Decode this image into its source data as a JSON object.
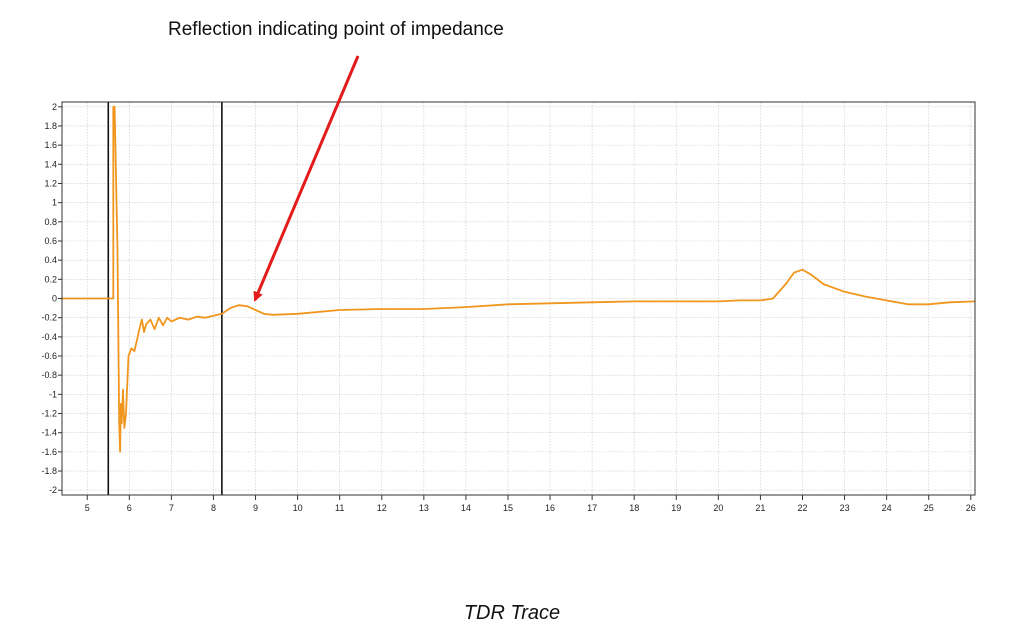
{
  "annotation": "Reflection indicating point of impedance",
  "caption": "TDR Trace",
  "chart_data": {
    "type": "line",
    "title": "",
    "xlabel": "",
    "ylabel": "",
    "xlim": [
      4.4,
      26.1
    ],
    "ylim": [
      -2.05,
      2.05
    ],
    "grid": true,
    "x_ticks": [
      5,
      6,
      7,
      8,
      9,
      10,
      11,
      12,
      13,
      14,
      15,
      16,
      17,
      18,
      19,
      20,
      21,
      22,
      23,
      24,
      25,
      26
    ],
    "y_ticks": [
      2,
      1.8,
      1.6,
      1.4,
      1.2,
      1,
      0.8,
      0.6,
      0.4,
      0.2,
      0,
      -0.2,
      -0.4,
      -0.6,
      -0.8,
      -1,
      -1.2,
      -1.4,
      -1.6,
      -1.8,
      -2
    ],
    "y_tick_labels": [
      "2",
      "1.8",
      "1.6",
      "1.4",
      "1.2",
      "1",
      "0.8",
      "0.6",
      "0.4",
      "0.2",
      "0",
      "-0.2",
      "-0.4",
      "-0.6",
      "-0.8",
      "-1",
      "-1.2",
      "-1.4",
      "-1.6",
      "-1.8",
      "-2"
    ],
    "cursors": [
      5.5,
      8.2
    ],
    "series_color": "#F0961E",
    "series": [
      {
        "x": [
          4.4,
          5.5,
          5.62,
          5.62,
          5.65,
          5.72,
          5.76,
          5.78,
          5.8,
          5.82,
          5.85,
          5.88,
          5.92,
          5.98,
          6.05,
          6.12,
          6.2,
          6.25,
          6.3,
          6.35,
          6.4,
          6.5,
          6.6,
          6.7,
          6.8,
          6.9,
          7.0,
          7.2,
          7.4,
          7.6,
          7.8,
          8.0,
          8.2,
          8.4,
          8.6,
          8.8,
          9.0,
          9.2,
          9.4,
          10.0,
          11.0,
          12.0,
          13.0,
          14.0,
          15.0,
          16.0,
          17.0,
          18.0,
          19.0,
          20.0,
          20.5,
          21.0,
          21.3,
          21.6,
          21.8,
          22.0,
          22.2,
          22.5,
          23.0,
          23.5,
          24.0,
          24.5,
          25.0,
          25.5,
          26.1
        ],
        "y": [
          0,
          0,
          0,
          2.0,
          2.0,
          0.5,
          -1.3,
          -1.6,
          -1.1,
          -1.3,
          -0.95,
          -1.35,
          -1.2,
          -0.6,
          -0.52,
          -0.55,
          -0.4,
          -0.3,
          -0.22,
          -0.35,
          -0.27,
          -0.22,
          -0.32,
          -0.2,
          -0.28,
          -0.2,
          -0.24,
          -0.2,
          -0.22,
          -0.19,
          -0.2,
          -0.18,
          -0.16,
          -0.1,
          -0.07,
          -0.08,
          -0.12,
          -0.16,
          -0.17,
          -0.16,
          -0.12,
          -0.11,
          -0.11,
          -0.09,
          -0.06,
          -0.05,
          -0.04,
          -0.03,
          -0.03,
          -0.03,
          -0.02,
          -0.02,
          0.0,
          0.15,
          0.27,
          0.3,
          0.25,
          0.15,
          0.07,
          0.02,
          -0.02,
          -0.06,
          -0.06,
          -0.04,
          -0.03
        ]
      }
    ]
  }
}
